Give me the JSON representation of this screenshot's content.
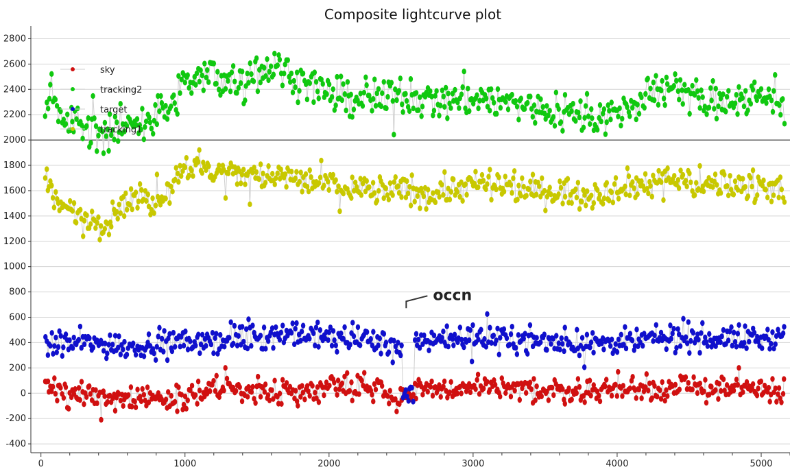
{
  "chart_data": {
    "type": "scatter",
    "title": "Composite lightcurve plot",
    "xlabel": "",
    "ylabel": "",
    "xlim": [
      -70,
      5200
    ],
    "ylim": [
      -470,
      2900
    ],
    "x_ticks": [
      0,
      1000,
      2000,
      3000,
      4000,
      5000
    ],
    "y_ticks": [
      -400,
      -200,
      0,
      200,
      400,
      600,
      800,
      1000,
      1200,
      1400,
      1600,
      1800,
      2000,
      2200,
      2400,
      2600,
      2800
    ],
    "grid": true,
    "reference_line_y": 2000,
    "legend_position": "top-left",
    "legend_order": [
      "sky",
      "tracking2",
      "target",
      "tracking1"
    ],
    "annotation": {
      "text": "occn",
      "x": 2550,
      "y": 780
    },
    "x_range": [
      30,
      5160
    ],
    "series": [
      {
        "name": "sky",
        "color": "#d01010",
        "baseline_anchors": [
          [
            30,
            10
          ],
          [
            300,
            0
          ],
          [
            450,
            -30
          ],
          [
            800,
            -40
          ],
          [
            1000,
            -30
          ],
          [
            1200,
            40
          ],
          [
            1500,
            20
          ],
          [
            1800,
            0
          ],
          [
            2000,
            80
          ],
          [
            2200,
            60
          ],
          [
            2400,
            40
          ],
          [
            2450,
            -60
          ],
          [
            2600,
            20
          ],
          [
            3000,
            40
          ],
          [
            3400,
            20
          ],
          [
            3800,
            20
          ],
          [
            4000,
            30
          ],
          [
            4400,
            40
          ],
          [
            4600,
            50
          ],
          [
            5000,
            30
          ],
          [
            5160,
            20
          ]
        ],
        "spread": 85,
        "range": [
          -340,
          200
        ]
      },
      {
        "name": "target",
        "color": "#1010cc",
        "baseline_anchors": [
          [
            30,
            380
          ],
          [
            300,
            400
          ],
          [
            600,
            370
          ],
          [
            800,
            390
          ],
          [
            1000,
            400
          ],
          [
            1200,
            420
          ],
          [
            1500,
            450
          ],
          [
            1700,
            470
          ],
          [
            2000,
            440
          ],
          [
            2200,
            430
          ],
          [
            2400,
            410
          ],
          [
            2500,
            380
          ],
          [
            2650,
            430
          ],
          [
            3000,
            440
          ],
          [
            3400,
            420
          ],
          [
            3600,
            400
          ],
          [
            4000,
            390
          ],
          [
            4400,
            440
          ],
          [
            5000,
            430
          ],
          [
            5160,
            460
          ]
        ],
        "spread": 90,
        "range": [
          100,
          780
        ],
        "occultation": {
          "x_range": [
            2510,
            2590
          ],
          "values": [
            -90,
            60
          ]
        }
      },
      {
        "name": "tracking1",
        "color": "#c8c800",
        "baseline_anchors": [
          [
            30,
            1700
          ],
          [
            100,
            1500
          ],
          [
            300,
            1400
          ],
          [
            450,
            1350
          ],
          [
            600,
            1550
          ],
          [
            800,
            1500
          ],
          [
            1000,
            1800
          ],
          [
            1200,
            1750
          ],
          [
            1500,
            1720
          ],
          [
            1700,
            1700
          ],
          [
            2000,
            1650
          ],
          [
            2200,
            1620
          ],
          [
            2500,
            1600
          ],
          [
            2700,
            1580
          ],
          [
            3000,
            1650
          ],
          [
            3200,
            1620
          ],
          [
            3500,
            1600
          ],
          [
            3800,
            1580
          ],
          [
            4000,
            1620
          ],
          [
            4400,
            1700
          ],
          [
            4600,
            1650
          ],
          [
            5000,
            1650
          ],
          [
            5160,
            1620
          ]
        ],
        "spread": 100,
        "range": [
          1150,
          2050
        ]
      },
      {
        "name": "tracking2",
        "color": "#10c810",
        "baseline_anchors": [
          [
            30,
            2300
          ],
          [
            200,
            2150
          ],
          [
            400,
            2050
          ],
          [
            700,
            2150
          ],
          [
            900,
            2250
          ],
          [
            1000,
            2450
          ],
          [
            1200,
            2500
          ],
          [
            1400,
            2450
          ],
          [
            1600,
            2600
          ],
          [
            1800,
            2500
          ],
          [
            2000,
            2350
          ],
          [
            2200,
            2300
          ],
          [
            2500,
            2350
          ],
          [
            2800,
            2300
          ],
          [
            3000,
            2350
          ],
          [
            3200,
            2300
          ],
          [
            3500,
            2250
          ],
          [
            3800,
            2200
          ],
          [
            4000,
            2200
          ],
          [
            4400,
            2450
          ],
          [
            4600,
            2300
          ],
          [
            5000,
            2350
          ],
          [
            5160,
            2300
          ]
        ],
        "spread": 130,
        "range": [
          1790,
          2820
        ]
      }
    ]
  }
}
